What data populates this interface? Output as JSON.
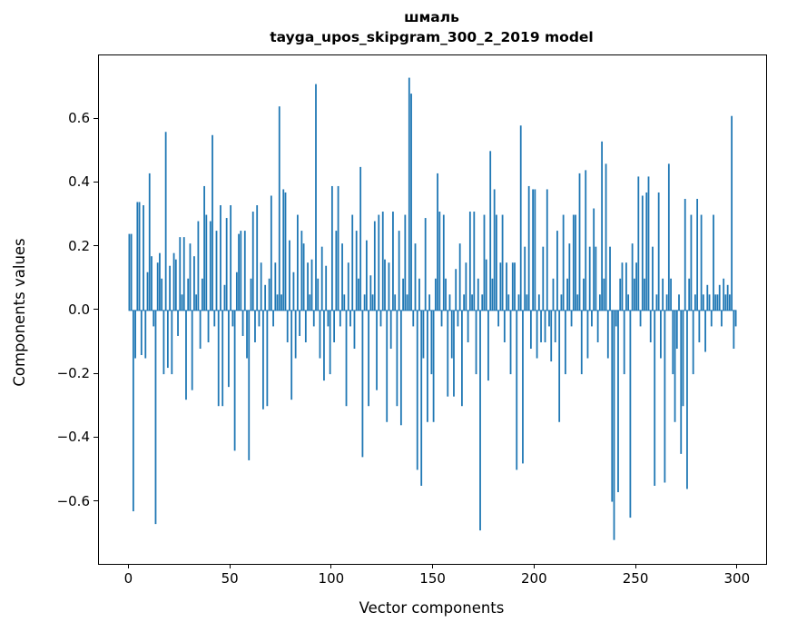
{
  "chart_data": {
    "type": "bar",
    "title_line1": "шмаль",
    "title_line2": "tayga_upos_skipgram_300_2_2019 model",
    "xlabel": "Vector components",
    "ylabel": "Components values",
    "bar_color": "#1f77b4",
    "xlim": [
      -14.95,
      313.95
    ],
    "ylim": [
      -0.795,
      0.8
    ],
    "x_ticks": [
      0,
      50,
      100,
      150,
      200,
      250,
      300
    ],
    "y_ticks": [
      -0.6,
      -0.4,
      -0.2,
      0.0,
      0.2,
      0.4,
      0.6
    ],
    "grid": false,
    "legend": "none",
    "values": [
      0.24,
      0.24,
      -0.63,
      -0.15,
      0.34,
      0.34,
      -0.14,
      0.33,
      -0.15,
      0.12,
      0.43,
      0.17,
      -0.05,
      -0.67,
      0.15,
      0.18,
      0.1,
      -0.2,
      0.56,
      -0.18,
      0.14,
      -0.2,
      0.18,
      0.16,
      -0.08,
      0.23,
      0.05,
      0.23,
      -0.28,
      0.1,
      0.21,
      -0.25,
      0.17,
      0.05,
      0.28,
      -0.12,
      0.1,
      0.39,
      0.3,
      -0.1,
      0.28,
      0.55,
      -0.05,
      0.25,
      -0.3,
      0.33,
      -0.3,
      0.08,
      0.29,
      -0.24,
      0.33,
      -0.05,
      -0.44,
      0.12,
      0.24,
      0.25,
      -0.08,
      0.25,
      -0.15,
      -0.47,
      0.1,
      0.31,
      -0.1,
      0.33,
      -0.05,
      0.15,
      -0.31,
      0.08,
      -0.3,
      0.1,
      0.36,
      -0.05,
      0.15,
      0.05,
      0.64,
      0.05,
      0.38,
      0.37,
      -0.1,
      0.22,
      -0.28,
      0.12,
      -0.15,
      0.3,
      -0.08,
      0.25,
      0.21,
      -0.1,
      0.15,
      0.05,
      0.16,
      -0.05,
      0.71,
      0.1,
      -0.15,
      0.2,
      -0.22,
      0.14,
      -0.05,
      -0.2,
      0.39,
      -0.1,
      0.25,
      0.39,
      -0.05,
      0.21,
      0.05,
      -0.3,
      0.15,
      -0.05,
      0.3,
      -0.12,
      0.25,
      0.1,
      0.45,
      -0.46,
      0.05,
      0.22,
      -0.3,
      0.11,
      0.05,
      0.28,
      -0.25,
      0.3,
      -0.05,
      0.31,
      0.16,
      -0.35,
      0.15,
      -0.12,
      0.31,
      0.05,
      -0.3,
      0.25,
      -0.36,
      0.1,
      0.3,
      0.05,
      0.73,
      0.68,
      -0.05,
      0.21,
      -0.5,
      0.1,
      -0.55,
      -0.15,
      0.29,
      -0.35,
      0.05,
      -0.2,
      -0.35,
      0.1,
      0.43,
      0.31,
      -0.05,
      0.3,
      0.1,
      -0.27,
      0.05,
      -0.15,
      -0.27,
      0.13,
      -0.05,
      0.21,
      -0.3,
      0.05,
      0.15,
      -0.1,
      0.31,
      0.05,
      0.31,
      -0.2,
      0.1,
      -0.69,
      0.05,
      0.3,
      0.16,
      -0.22,
      0.5,
      0.1,
      0.38,
      0.3,
      -0.05,
      0.15,
      0.3,
      -0.1,
      0.15,
      0.05,
      -0.2,
      0.15,
      0.15,
      -0.5,
      0.05,
      0.58,
      -0.48,
      0.2,
      0.05,
      0.39,
      -0.12,
      0.38,
      0.38,
      -0.15,
      0.05,
      -0.1,
      0.2,
      -0.1,
      0.38,
      -0.05,
      -0.16,
      0.1,
      -0.1,
      0.25,
      -0.35,
      0.05,
      0.3,
      -0.2,
      0.1,
      0.21,
      -0.05,
      0.3,
      0.3,
      0.05,
      0.43,
      -0.2,
      0.1,
      0.44,
      -0.15,
      0.2,
      -0.05,
      0.32,
      0.2,
      -0.1,
      0.05,
      0.53,
      0.1,
      0.46,
      -0.15,
      0.2,
      -0.6,
      -0.72,
      -0.05,
      -0.57,
      0.1,
      0.15,
      -0.2,
      0.15,
      0.05,
      -0.65,
      0.21,
      0.1,
      0.15,
      0.42,
      -0.05,
      0.36,
      0.1,
      0.37,
      0.42,
      -0.1,
      0.2,
      -0.55,
      0.05,
      0.37,
      -0.15,
      0.1,
      -0.54,
      0.05,
      0.46,
      0.1,
      -0.2,
      -0.35,
      -0.12,
      0.05,
      -0.45,
      -0.3,
      0.35,
      -0.56,
      0.1,
      0.3,
      -0.2,
      0.05,
      0.35,
      -0.1,
      0.3,
      0.05,
      -0.13,
      0.08,
      0.05,
      -0.05,
      0.3,
      0.05,
      0.05,
      0.08,
      -0.05,
      0.1,
      0.05,
      0.08,
      0.05,
      0.61,
      -0.12,
      -0.05
    ]
  }
}
